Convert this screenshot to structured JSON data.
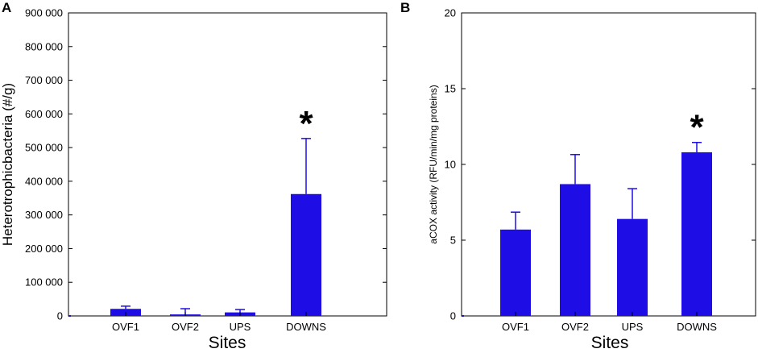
{
  "chart_data": [
    {
      "panel_label": "A",
      "type": "bar",
      "categories": [
        "OVF1",
        "OVF2",
        "UPS",
        "DOWNS"
      ],
      "values": [
        21000,
        4500,
        10500,
        362000
      ],
      "errors": [
        8000,
        17000,
        8500,
        165000
      ],
      "significance": [
        "",
        "",
        "",
        "*"
      ],
      "xlabel": "Sites",
      "ylabel": "Heterotrophicbacteria (#/g)",
      "ylim": [
        0,
        900000
      ],
      "yticks": [
        0,
        100000,
        200000,
        300000,
        400000,
        500000,
        600000,
        700000,
        800000,
        900000
      ],
      "ytick_labels": [
        "0",
        "100 000",
        "200 000",
        "300 000",
        "400 000",
        "500 000",
        "600 000",
        "700 000",
        "800 000",
        "900 000"
      ],
      "grid": false,
      "bar_color": "#1f0de6"
    },
    {
      "panel_label": "B",
      "type": "bar",
      "categories": [
        "OVF1",
        "OVF2",
        "UPS",
        "DOWNS"
      ],
      "values": [
        5.7,
        8.7,
        6.4,
        10.8
      ],
      "errors": [
        1.15,
        1.95,
        2.0,
        0.65
      ],
      "significance": [
        "",
        "",
        "",
        "*"
      ],
      "xlabel": "Sites",
      "ylabel": "aCOX activity (RFU/min/mg proteins)",
      "ylim": [
        0,
        20
      ],
      "yticks": [
        0,
        5,
        10,
        15,
        20
      ],
      "ytick_labels": [
        "0",
        "5",
        "10",
        "15",
        "20"
      ],
      "grid": false,
      "bar_color": "#1f0de6"
    }
  ]
}
